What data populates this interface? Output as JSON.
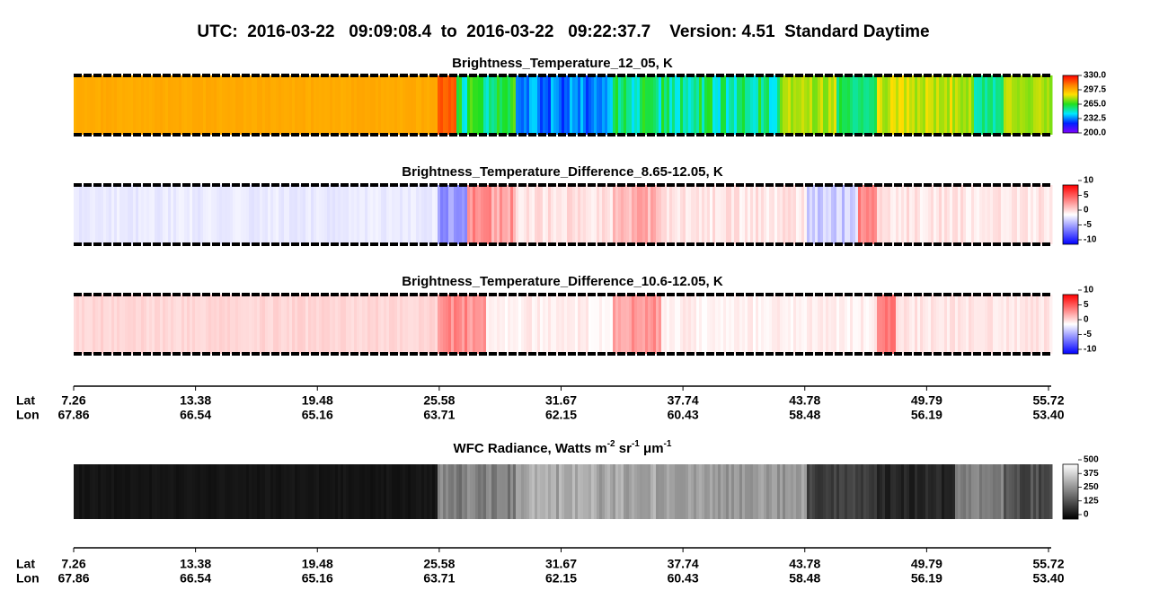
{
  "title": "UTC:  2016-03-22   09:09:08.4  to  2016-03-22   09:22:37.7    Version: 4.51  Standard Daytime",
  "track_axes": {
    "row_labels": [
      "Lat",
      "Lon"
    ],
    "lat": [
      "7.26",
      "13.38",
      "19.48",
      "25.58",
      "31.67",
      "37.74",
      "43.78",
      "49.79",
      "55.72"
    ],
    "lon": [
      "67.86",
      "66.54",
      "65.16",
      "63.71",
      "62.15",
      "60.43",
      "58.48",
      "56.19",
      "53.40"
    ]
  },
  "chart_data": [
    {
      "type": "heatmap",
      "title": "Brightness_Temperature_12_05, K",
      "colormap": [
        "#8000ff",
        "#0020ff",
        "#00e8ff",
        "#20e020",
        "#ffe000",
        "#ff8000",
        "#ff0000"
      ],
      "zlim": [
        200,
        330
      ],
      "zticks": [
        {
          "value": 330,
          "label": "330.0"
        },
        {
          "value": 297.5,
          "label": "297.5"
        },
        {
          "value": 265,
          "label": "265.0"
        },
        {
          "value": 232.5,
          "label": "232.5"
        },
        {
          "value": 200,
          "label": "200.0"
        }
      ]
    },
    {
      "type": "heatmap",
      "title": "Brightness_Temperature_Difference_8.65-12.05, K",
      "colormap": [
        "#0000ff",
        "#ffffff",
        "#ff0000"
      ],
      "zlim": [
        -10,
        10
      ],
      "zticks": [
        10,
        5,
        0,
        -5,
        -10
      ]
    },
    {
      "type": "heatmap",
      "title": "Brightness_Temperature_Difference_10.6-12.05, K",
      "colormap": [
        "#0000ff",
        "#ffffff",
        "#ff0000"
      ],
      "zlim": [
        -10,
        10
      ],
      "zticks": [
        10,
        5,
        0,
        -5,
        -10
      ]
    },
    {
      "type": "heatmap",
      "title_parts": [
        "WFC Radiance, Watts m",
        "-2",
        " sr",
        "-1",
        " μm",
        "-1"
      ],
      "colormap": [
        "#000000",
        "#ffffff"
      ],
      "zlim": [
        0,
        500
      ],
      "zticks": [
        500,
        375,
        250,
        125,
        0
      ]
    }
  ]
}
